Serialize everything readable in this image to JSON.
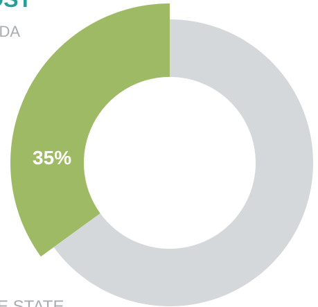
{
  "chart_data": {
    "type": "pie",
    "title": "OST",
    "subtitle": "DA",
    "footer": "E STATE",
    "values": [
      35,
      65
    ],
    "value_labels": [
      "35%",
      null
    ],
    "colors": [
      "#9fba65",
      "#d5d8db"
    ],
    "title_color": "#2a9d96",
    "text_color": "#a9adb1",
    "donut": true
  }
}
